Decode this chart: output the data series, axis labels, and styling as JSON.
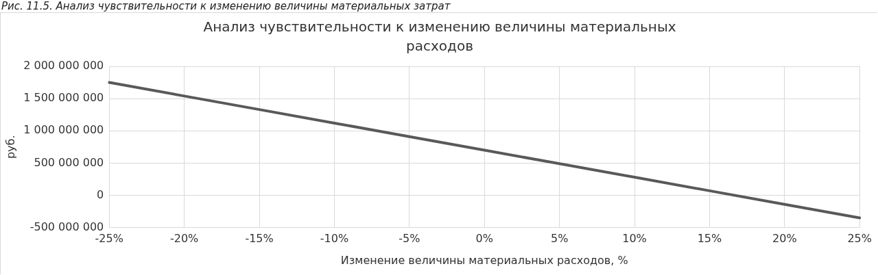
{
  "chart_data": {
    "type": "line",
    "title": "Анализ чувствительности к изменению величины материальных расходов",
    "xlabel": "Изменение величины материальных расходов, %",
    "ylabel": "руб.",
    "annotations": [
      "Рис. 11.5. Анализ чувствительности к изменению величины материальных затрат"
    ],
    "categories": [
      "-25%",
      "-20%",
      "-15%",
      "-10%",
      "-5%",
      "0%",
      "5%",
      "10%",
      "15%",
      "20%",
      "25%"
    ],
    "series": [
      {
        "color": "#595959",
        "values": [
          1750000000,
          1540000000,
          1330000000,
          1120000000,
          910000000,
          700000000,
          490000000,
          280000000,
          70000000,
          -140000000,
          -350000000
        ]
      }
    ],
    "ylim": [
      -500000000,
      2000000000
    ],
    "yticks": [
      -500000000,
      0,
      500000000,
      1000000000,
      1500000000,
      2000000000
    ],
    "grid": true,
    "legend": false,
    "marker": "none",
    "line_style": "solid"
  }
}
